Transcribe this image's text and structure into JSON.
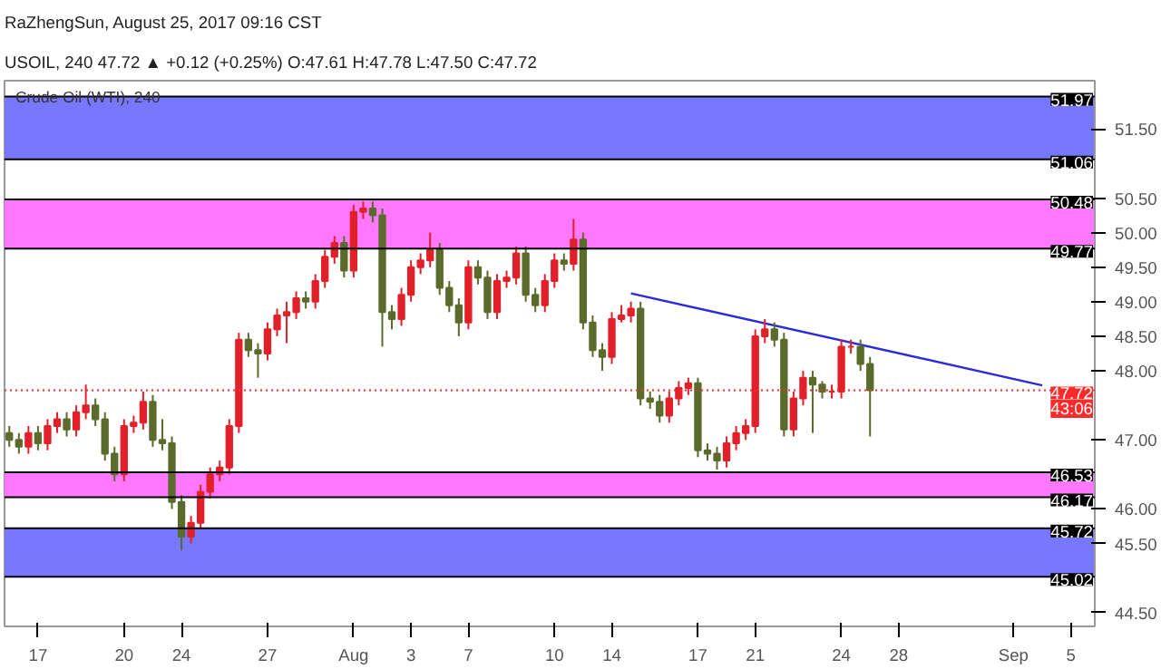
{
  "chart_data": {
    "type": "candlestick",
    "title": "Crude Oil (WTI), 240",
    "subtitle": "USOIL, 240 47.72 ▲ +0.12 (+0.25%) O:47.61 H:47.78 L:47.50 C:47.72",
    "annotations": [
      "RaZhengSun, August 25, 2017 09:16 CST",
      {
        "text": "43:06",
        "y": 47.45
      }
    ],
    "categories": [
      null,
      null,
      null,
      "17",
      null,
      null,
      null,
      null,
      null,
      null,
      null,
      null,
      "20",
      null,
      null,
      null,
      null,
      null,
      "24",
      null,
      null,
      null,
      null,
      null,
      null,
      null,
      null,
      "27",
      null,
      null,
      null,
      null,
      null,
      null,
      null,
      null,
      "Aug",
      null,
      null,
      null,
      null,
      null,
      "3",
      null,
      null,
      null,
      null,
      null,
      "7",
      null,
      null,
      null,
      null,
      null,
      null,
      null,
      null,
      "10",
      null,
      null,
      null,
      null,
      null,
      "14",
      null,
      null,
      null,
      null,
      null,
      null,
      null,
      null,
      "17",
      null,
      null,
      null,
      null,
      null,
      "21",
      null,
      null,
      null,
      null,
      null,
      null,
      null,
      null,
      "24",
      null,
      null,
      null,
      null,
      null,
      "28",
      null,
      null,
      null,
      null,
      null,
      null,
      null,
      null,
      null,
      null,
      null,
      "Sep",
      null,
      null,
      null,
      null,
      null,
      "5",
      null,
      null
    ],
    "ohlc": [
      [
        47.1,
        47.2,
        46.9,
        47.0
      ],
      [
        47.0,
        47.1,
        46.8,
        46.9
      ],
      [
        46.9,
        47.2,
        46.8,
        47.1
      ],
      [
        47.1,
        47.2,
        46.85,
        46.95
      ],
      [
        46.95,
        47.3,
        46.85,
        47.2
      ],
      [
        47.2,
        47.4,
        47.1,
        47.3
      ],
      [
        47.3,
        47.4,
        47.05,
        47.15
      ],
      [
        47.15,
        47.5,
        47.05,
        47.4
      ],
      [
        47.4,
        47.8,
        47.3,
        47.5
      ],
      [
        47.5,
        47.6,
        47.2,
        47.3
      ],
      [
        47.3,
        47.4,
        46.7,
        46.8
      ],
      [
        46.8,
        46.9,
        46.4,
        46.5
      ],
      [
        46.5,
        47.3,
        46.4,
        47.2
      ],
      [
        47.2,
        47.35,
        47.1,
        47.25
      ],
      [
        47.25,
        47.7,
        47.15,
        47.55
      ],
      [
        47.55,
        47.65,
        46.9,
        47.0
      ],
      [
        47.0,
        47.3,
        46.85,
        46.95
      ],
      [
        46.95,
        47.05,
        46.0,
        46.1
      ],
      [
        46.1,
        46.2,
        45.4,
        45.6
      ],
      [
        45.6,
        45.9,
        45.5,
        45.8
      ],
      [
        45.8,
        46.35,
        45.7,
        46.25
      ],
      [
        46.25,
        46.6,
        46.15,
        46.5
      ],
      [
        46.5,
        46.7,
        46.4,
        46.6
      ],
      [
        46.6,
        47.3,
        46.5,
        47.2
      ],
      [
        47.2,
        48.55,
        47.1,
        48.45
      ],
      [
        48.45,
        48.55,
        48.2,
        48.3
      ],
      [
        48.3,
        48.4,
        47.9,
        48.25
      ],
      [
        48.25,
        48.7,
        48.15,
        48.6
      ],
      [
        48.6,
        48.9,
        48.5,
        48.8
      ],
      [
        48.8,
        49.0,
        48.4,
        48.85
      ],
      [
        48.85,
        49.15,
        48.75,
        49.05
      ],
      [
        49.05,
        49.15,
        48.9,
        49.0
      ],
      [
        49.0,
        49.4,
        48.9,
        49.3
      ],
      [
        49.3,
        49.75,
        49.2,
        49.65
      ],
      [
        49.65,
        49.95,
        49.55,
        49.85
      ],
      [
        49.85,
        49.95,
        49.35,
        49.45
      ],
      [
        49.45,
        50.4,
        49.35,
        50.3
      ],
      [
        50.3,
        50.45,
        50.2,
        50.35
      ],
      [
        50.35,
        50.45,
        50.15,
        50.25
      ],
      [
        50.25,
        50.35,
        48.35,
        48.85
      ],
      [
        48.85,
        48.95,
        48.6,
        48.75
      ],
      [
        48.75,
        49.2,
        48.65,
        49.1
      ],
      [
        49.1,
        49.6,
        49.0,
        49.5
      ],
      [
        49.5,
        49.7,
        49.4,
        49.6
      ],
      [
        49.6,
        50.0,
        49.5,
        49.75
      ],
      [
        49.75,
        49.85,
        49.1,
        49.2
      ],
      [
        49.2,
        49.3,
        48.85,
        48.95
      ],
      [
        48.95,
        49.05,
        48.5,
        48.7
      ],
      [
        48.7,
        49.6,
        48.6,
        49.5
      ],
      [
        49.5,
        49.6,
        49.25,
        49.35
      ],
      [
        49.35,
        49.45,
        48.75,
        48.85
      ],
      [
        48.85,
        49.4,
        48.75,
        49.3
      ],
      [
        49.3,
        49.45,
        49.2,
        49.35
      ],
      [
        49.35,
        49.8,
        49.25,
        49.7
      ],
      [
        49.7,
        49.8,
        49.0,
        49.1
      ],
      [
        49.1,
        49.2,
        48.85,
        48.95
      ],
      [
        48.95,
        49.4,
        48.85,
        49.3
      ],
      [
        49.3,
        49.7,
        49.2,
        49.6
      ],
      [
        49.6,
        49.7,
        49.45,
        49.55
      ],
      [
        49.55,
        50.2,
        49.45,
        49.9
      ],
      [
        49.9,
        50.0,
        48.6,
        48.7
      ],
      [
        48.7,
        48.8,
        48.2,
        48.3
      ],
      [
        48.3,
        48.4,
        48.0,
        48.2
      ],
      [
        48.2,
        48.85,
        48.1,
        48.75
      ],
      [
        48.75,
        48.95,
        48.7,
        48.8
      ],
      [
        48.8,
        49.0,
        48.7,
        48.9
      ],
      [
        48.9,
        49.0,
        47.5,
        47.6
      ],
      [
        47.6,
        47.7,
        47.45,
        47.55
      ],
      [
        47.55,
        47.65,
        47.25,
        47.35
      ],
      [
        47.35,
        47.7,
        47.25,
        47.6
      ],
      [
        47.6,
        47.85,
        47.5,
        47.75
      ],
      [
        47.75,
        47.9,
        47.65,
        47.82
      ],
      [
        47.82,
        47.9,
        46.75,
        46.85
      ],
      [
        46.85,
        46.95,
        46.7,
        46.8
      ],
      [
        46.8,
        46.9,
        46.57,
        46.7
      ],
      [
        46.7,
        47.05,
        46.6,
        46.95
      ],
      [
        46.95,
        47.2,
        46.85,
        47.1
      ],
      [
        47.1,
        47.3,
        47.0,
        47.2
      ],
      [
        47.2,
        48.6,
        47.1,
        48.5
      ],
      [
        48.5,
        48.75,
        48.4,
        48.6
      ],
      [
        48.6,
        48.7,
        48.35,
        48.45
      ],
      [
        48.45,
        48.55,
        47.05,
        47.15
      ],
      [
        47.15,
        47.7,
        47.05,
        47.6
      ],
      [
        47.6,
        48.0,
        47.5,
        47.9
      ],
      [
        47.9,
        48.0,
        47.1,
        47.8
      ],
      [
        47.8,
        47.85,
        47.6,
        47.7
      ],
      [
        47.7,
        47.8,
        47.6,
        47.7
      ],
      [
        47.7,
        48.45,
        47.6,
        48.35
      ],
      [
        48.35,
        48.45,
        48.25,
        48.35
      ],
      [
        48.35,
        48.45,
        48.0,
        48.1
      ],
      [
        48.1,
        48.2,
        47.05,
        47.72
      ],
      null,
      null,
      null,
      null,
      null,
      null,
      null,
      null,
      null,
      null,
      null,
      null,
      null,
      null,
      null,
      null,
      null,
      null,
      null,
      null,
      null,
      null,
      null
    ],
    "colors": [
      "#5a6b2c",
      "#5a6b2c",
      "#e2202a",
      "#5a6b2c",
      "#e2202a",
      "#e2202a",
      "#5a6b2c",
      "#e2202a",
      "#e2202a",
      "#5a6b2c",
      "#5a6b2c",
      "#5a6b2c",
      "#e2202a",
      "#e2202a",
      "#e2202a",
      "#5a6b2c",
      "#5a6b2c",
      "#5a6b2c",
      "#5a6b2c",
      "#e2202a",
      "#e2202a",
      "#e2202a",
      "#e2202a",
      "#e2202a",
      "#e2202a",
      "#5a6b2c",
      "#5a6b2c",
      "#e2202a",
      "#e2202a",
      "#e2202a",
      "#e2202a",
      "#5a6b2c",
      "#e2202a",
      "#e2202a",
      "#e2202a",
      "#5a6b2c",
      "#e2202a",
      "#e2202a",
      "#5a6b2c",
      "#5a6b2c",
      "#5a6b2c",
      "#e2202a",
      "#e2202a",
      "#e2202a",
      "#e2202a",
      "#5a6b2c",
      "#5a6b2c",
      "#5a6b2c",
      "#e2202a",
      "#5a6b2c",
      "#5a6b2c",
      "#e2202a",
      "#e2202a",
      "#e2202a",
      "#5a6b2c",
      "#5a6b2c",
      "#e2202a",
      "#e2202a",
      "#5a6b2c",
      "#e2202a",
      "#5a6b2c",
      "#5a6b2c",
      "#5a6b2c",
      "#e2202a",
      "#e2202a",
      "#e2202a",
      "#5a6b2c",
      "#5a6b2c",
      "#5a6b2c",
      "#e2202a",
      "#e2202a",
      "#e2202a",
      "#5a6b2c",
      "#5a6b2c",
      "#5a6b2c",
      "#e2202a",
      "#e2202a",
      "#e2202a",
      "#e2202a",
      "#e2202a",
      "#5a6b2c",
      "#5a6b2c",
      "#e2202a",
      "#e2202a",
      "#5a6b2c",
      "#5a6b2c",
      "#e2202a",
      "#e2202a",
      "#e2202a",
      "#5a6b2c",
      "#5a6b2c",
      null,
      null,
      null,
      null,
      null,
      null,
      null,
      null,
      null,
      null,
      null,
      null,
      null,
      null,
      null,
      null,
      null,
      null,
      null,
      null,
      null,
      null,
      null
    ],
    "series": [
      {
        "type": "line",
        "color": "#2b2bd9",
        "values": [
          null,
          null,
          null,
          null,
          null,
          null,
          null,
          null,
          null,
          null,
          null,
          null,
          null,
          null,
          null,
          null,
          null,
          null,
          null,
          null,
          null,
          null,
          null,
          null,
          null,
          null,
          null,
          null,
          null,
          null,
          null,
          null,
          null,
          null,
          null,
          null,
          null,
          null,
          null,
          null,
          null,
          null,
          null,
          null,
          null,
          null,
          null,
          null,
          null,
          null,
          null,
          null,
          null,
          null,
          null,
          null,
          null,
          null,
          null,
          null,
          null,
          null,
          null,
          null,
          null,
          49.12,
          null,
          null,
          null,
          null,
          null,
          null,
          null,
          null,
          null,
          null,
          null,
          null,
          null,
          null,
          null,
          null,
          null,
          null,
          null,
          null,
          null,
          null,
          null,
          null,
          null,
          null,
          null,
          null,
          null,
          null,
          null,
          null,
          null,
          null,
          null,
          null,
          null,
          null,
          null,
          null,
          null,
          null,
          47.79,
          null,
          null,
          null,
          null,
          null
        ]
      }
    ],
    "ylim": [
      44.3,
      52.2
    ],
    "yticks": [
      {
        "value": 44.5,
        "label": "44.50"
      },
      {
        "value": 45.5,
        "label": "45.50"
      },
      {
        "value": 46.0,
        "label": "46.00"
      },
      {
        "value": 47.0,
        "label": "47.00"
      },
      {
        "value": 48.0,
        "label": "48.00"
      },
      {
        "value": 48.5,
        "label": "48.50"
      },
      {
        "value": 49.0,
        "label": "49.00"
      },
      {
        "value": 49.5,
        "label": "49.50"
      },
      {
        "value": 50.0,
        "label": "50.00"
      },
      {
        "value": 50.5,
        "label": "50.50"
      },
      {
        "value": 51.5,
        "label": "51.50"
      }
    ],
    "bands": [
      {
        "axis": "y",
        "from": 51.06,
        "to": 51.97,
        "color": "#7878ff"
      },
      {
        "axis": "y",
        "from": 49.77,
        "to": 50.48,
        "color": "#ff78ff"
      },
      {
        "axis": "y",
        "from": 46.17,
        "to": 46.53,
        "color": "#ff78ff"
      },
      {
        "axis": "y",
        "from": 45.02,
        "to": 45.72,
        "color": "#7878ff"
      }
    ],
    "ref_lines": [
      {
        "axis": "y",
        "value": 51.97,
        "label": "51.97",
        "color": "#000000"
      },
      {
        "axis": "y",
        "value": 51.06,
        "label": "51.06",
        "color": "#000000"
      },
      {
        "axis": "y",
        "value": 50.48,
        "label": "50.48",
        "color": "#000000"
      },
      {
        "axis": "y",
        "value": 49.77,
        "label": "49.77",
        "color": "#000000"
      },
      {
        "axis": "y",
        "value": 47.72,
        "label": "47.72",
        "color": "#ff2a2a",
        "line_style": "dotted"
      },
      {
        "axis": "y",
        "value": 46.53,
        "label": "46.53",
        "color": "#000000"
      },
      {
        "axis": "y",
        "value": 46.17,
        "label": "46.17",
        "color": "#000000"
      },
      {
        "axis": "y",
        "value": 45.72,
        "label": "45.72",
        "color": "#000000"
      },
      {
        "axis": "y",
        "value": 45.02,
        "label": "45.02",
        "color": "#000000"
      }
    ],
    "grid": false
  }
}
